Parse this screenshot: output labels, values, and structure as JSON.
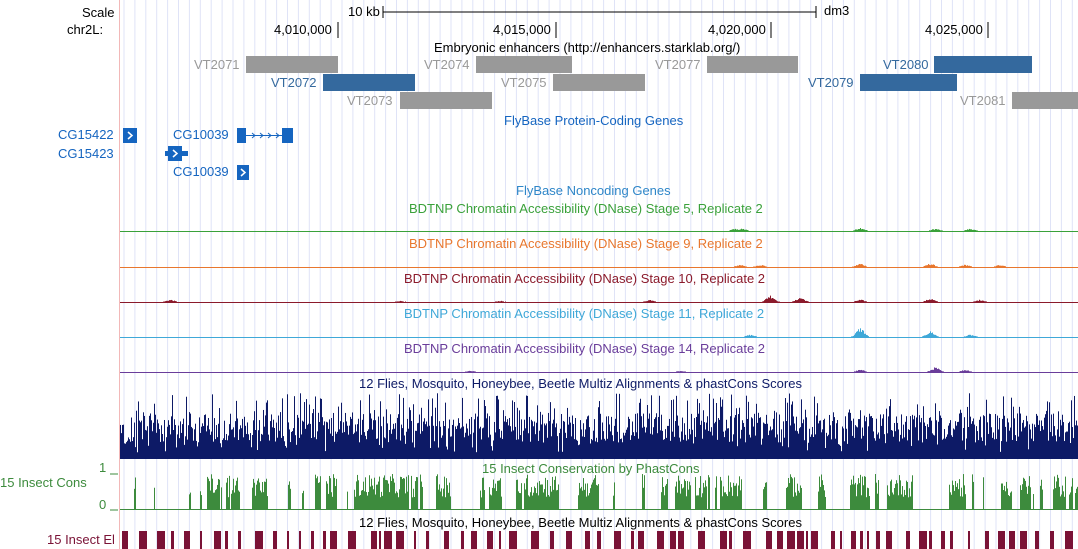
{
  "ruler": {
    "scale_label": "Scale",
    "chrom_label": "chr2L:",
    "scale_bar_text": "10 kb",
    "assembly": "dm3",
    "positions": [
      "4,010,000",
      "4,015,000",
      "4,020,000",
      "4,025,000"
    ]
  },
  "enhancers": {
    "title": "Embryonic enhancers (http://enhancers.starklab.org/)",
    "items": [
      {
        "name": "VT2071",
        "color": "#999999"
      },
      {
        "name": "VT2072",
        "color": "#34699e"
      },
      {
        "name": "VT2073",
        "color": "#999999"
      },
      {
        "name": "VT2074",
        "color": "#999999"
      },
      {
        "name": "VT2075",
        "color": "#999999"
      },
      {
        "name": "VT2077",
        "color": "#999999"
      },
      {
        "name": "VT2079",
        "color": "#34699e"
      },
      {
        "name": "VT2080",
        "color": "#34699e"
      },
      {
        "name": "VT2081",
        "color": "#999999"
      }
    ]
  },
  "protein_genes": {
    "title": "FlyBase Protein-Coding Genes",
    "color": "#1565c0",
    "genes": [
      "CG15422",
      "CG15423",
      "CG10039",
      "CG10039"
    ]
  },
  "noncoding": {
    "title": "FlyBase Noncoding Genes",
    "color": "#2e86c8"
  },
  "dnase": [
    {
      "title": "BDTNP Chromatin Accessibility (DNase) Stage 5, Replicate 2",
      "color": "#3aa13a"
    },
    {
      "title": "BDTNP Chromatin Accessibility (DNase) Stage 9, Replicate 2",
      "color": "#e8772e"
    },
    {
      "title": "BDTNP Chromatin Accessibility (DNase) Stage 10, Replicate 2",
      "color": "#8b1a2b"
    },
    {
      "title": "BDTNP Chromatin Accessibility (DNase) Stage 11, Replicate 2",
      "color": "#3fa8d8"
    },
    {
      "title": "BDTNP Chromatin Accessibility (DNase) Stage 14, Replicate 2",
      "color": "#6a3d9a"
    }
  ],
  "multiz": {
    "title": "12 Flies, Mosquito, Honeybee, Beetle Multiz Alignments & phastCons Scores",
    "color": "#0d1a66"
  },
  "phastcons": {
    "title": "15 Insect Conservation by PhastCons",
    "side_label": "15 Insect Cons",
    "max_tick": "1",
    "min_tick": "0",
    "color": "#3d8b3d"
  },
  "elements": {
    "title": "12 Flies, Mosquito, Honeybee, Beetle Multiz Alignments & phastCons Scores",
    "side_label": "15 Insect El",
    "color": "#7a1236"
  }
}
